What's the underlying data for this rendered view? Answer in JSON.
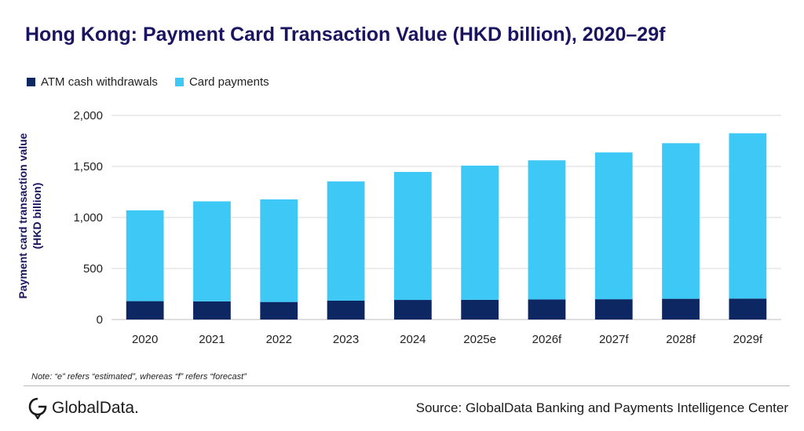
{
  "title": "Hong Kong: Payment Card Transaction Value (HKD billion), 2020–29f",
  "note": "Note: “e” refers “estimated”, whereas “f” refers “forecast”",
  "source": "Source: GlobalData Banking and Payments Intelligence Center",
  "logo_text": "GlobalData.",
  "colors": {
    "atm": "#0d2763",
    "card": "#3ec8f5",
    "title": "#1a1560",
    "grid": "#d9d9d9"
  },
  "chart_data": {
    "type": "bar",
    "stacked": true,
    "categories": [
      "2020",
      "2021",
      "2022",
      "2023",
      "2024",
      "2025e",
      "2026f",
      "2027f",
      "2028f",
      "2029f"
    ],
    "series": [
      {
        "name": "ATM cash withdrawals",
        "color": "#0d2763",
        "values": [
          180,
          178,
          172,
          185,
          192,
          193,
          197,
          199,
          203,
          205
        ]
      },
      {
        "name": "Card payments",
        "color": "#3ec8f5",
        "values": [
          890,
          980,
          1005,
          1168,
          1254,
          1315,
          1363,
          1438,
          1525,
          1620
        ]
      }
    ],
    "ylabel_line1": "Payment card transaction value",
    "ylabel_line2": "(HKD billion)",
    "ylim": [
      0,
      2000
    ],
    "yticks": [
      0,
      500,
      1000,
      1500,
      2000
    ],
    "ytick_labels": [
      "0",
      "500",
      "1,000",
      "1,500",
      "2,000"
    ],
    "grid": true,
    "legend_position": "top-left"
  }
}
